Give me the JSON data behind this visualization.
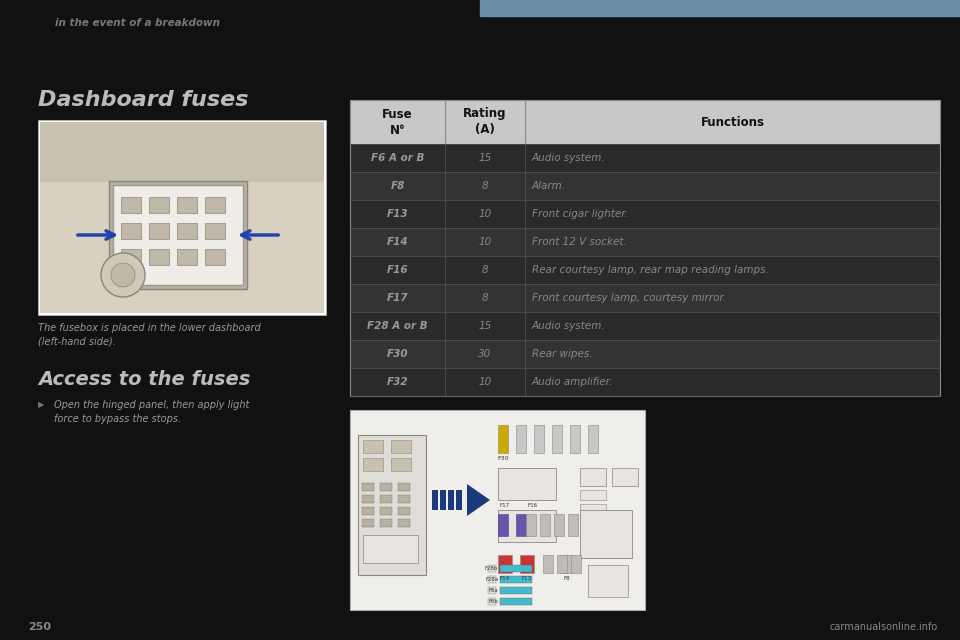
{
  "page_title": "in the event of a breakdown",
  "blue_bar_color": "#6a8fa8",
  "bg_color": "#111111",
  "section_title_1": "Dashboard fuses",
  "section_title_2": "Access to the fuses",
  "caption_text": "The fusebox is placed in the lower dashboard\n(left-hand side).",
  "access_bullet": "Open the hinged panel, then apply light\nforce to bypass the stops.",
  "header_bg": "#c8c8c8",
  "row_bg_dark": "#2a2a2a",
  "row_bg_light": "#333333",
  "table_border": "#666666",
  "header_text": "#111111",
  "row_text_col1": "#999999",
  "row_text_col23": "#888888",
  "col_headers": [
    "Fuse\nN°",
    "Rating\n(A)",
    "Functions"
  ],
  "table_rows": [
    [
      "F6 A or B",
      "15",
      "Audio system."
    ],
    [
      "F8",
      "8",
      "Alarm."
    ],
    [
      "F13",
      "10",
      "Front cigar lighter."
    ],
    [
      "F14",
      "10",
      "Front 12 V socket."
    ],
    [
      "F16",
      "8",
      "Rear courtesy lamp, rear map reading lamps."
    ],
    [
      "F17",
      "8",
      "Front courtesy lamp, courtesy mirror."
    ],
    [
      "F28 A or B",
      "15",
      "Audio system."
    ],
    [
      "F30",
      "30",
      "Rear wipes."
    ],
    [
      "F32",
      "10",
      "Audio amplifier."
    ]
  ],
  "page_number": "250",
  "website_text": "carmanualsonline.info"
}
